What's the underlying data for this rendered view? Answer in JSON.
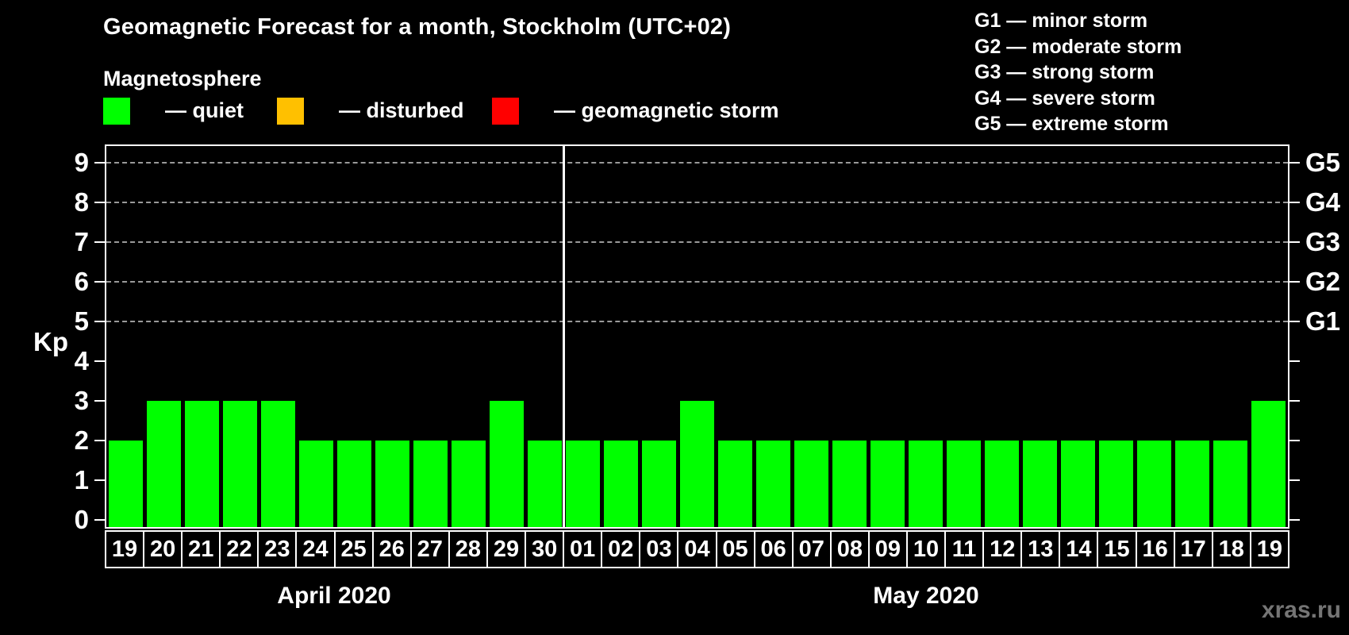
{
  "title": "Geomagnetic Forecast for a month, Stockholm (UTC+02)",
  "legend": {
    "title": "Magnetosphere",
    "items": [
      {
        "key": "quiet",
        "label": "— quiet",
        "color": "#00ff00"
      },
      {
        "key": "disturbed",
        "label": "— disturbed",
        "color": "#ffc000"
      },
      {
        "key": "storm",
        "label": "— geomagnetic storm",
        "color": "#ff0000"
      }
    ]
  },
  "g_legend": [
    "G1 — minor storm",
    "G2 — moderate storm",
    "G3 — strong storm",
    "G4 — severe storm",
    "G5 — extreme storm"
  ],
  "watermark": "xras.ru",
  "chart_data": {
    "type": "bar",
    "ylabel": "Kp",
    "ylim": [
      0,
      9.4
    ],
    "yticks": [
      0,
      1,
      2,
      3,
      4,
      5,
      6,
      7,
      8,
      9
    ],
    "gridlines_at": [
      5,
      6,
      7,
      8,
      9
    ],
    "right_axis_labels": [
      {
        "kp": 5,
        "label": "G1"
      },
      {
        "kp": 6,
        "label": "G2"
      },
      {
        "kp": 7,
        "label": "G3"
      },
      {
        "kp": 8,
        "label": "G4"
      },
      {
        "kp": 9,
        "label": "G5"
      }
    ],
    "bar_status_all": "quiet",
    "colors": {
      "quiet": "#00ff00",
      "disturbed": "#ffc000",
      "storm": "#ff0000"
    },
    "months": [
      {
        "label": "April 2020",
        "days": [
          "19",
          "20",
          "21",
          "22",
          "23",
          "24",
          "25",
          "26",
          "27",
          "28",
          "29",
          "30"
        ],
        "values": [
          2,
          3,
          3,
          3,
          3,
          2,
          2,
          2,
          2,
          2,
          3,
          2
        ]
      },
      {
        "label": "May 2020",
        "days": [
          "01",
          "02",
          "03",
          "04",
          "05",
          "06",
          "07",
          "08",
          "09",
          "10",
          "11",
          "12",
          "13",
          "14",
          "15",
          "16",
          "17",
          "18",
          "19"
        ],
        "values": [
          2,
          2,
          2,
          3,
          2,
          2,
          2,
          2,
          2,
          2,
          2,
          2,
          2,
          2,
          2,
          2,
          2,
          2,
          3
        ]
      }
    ]
  }
}
